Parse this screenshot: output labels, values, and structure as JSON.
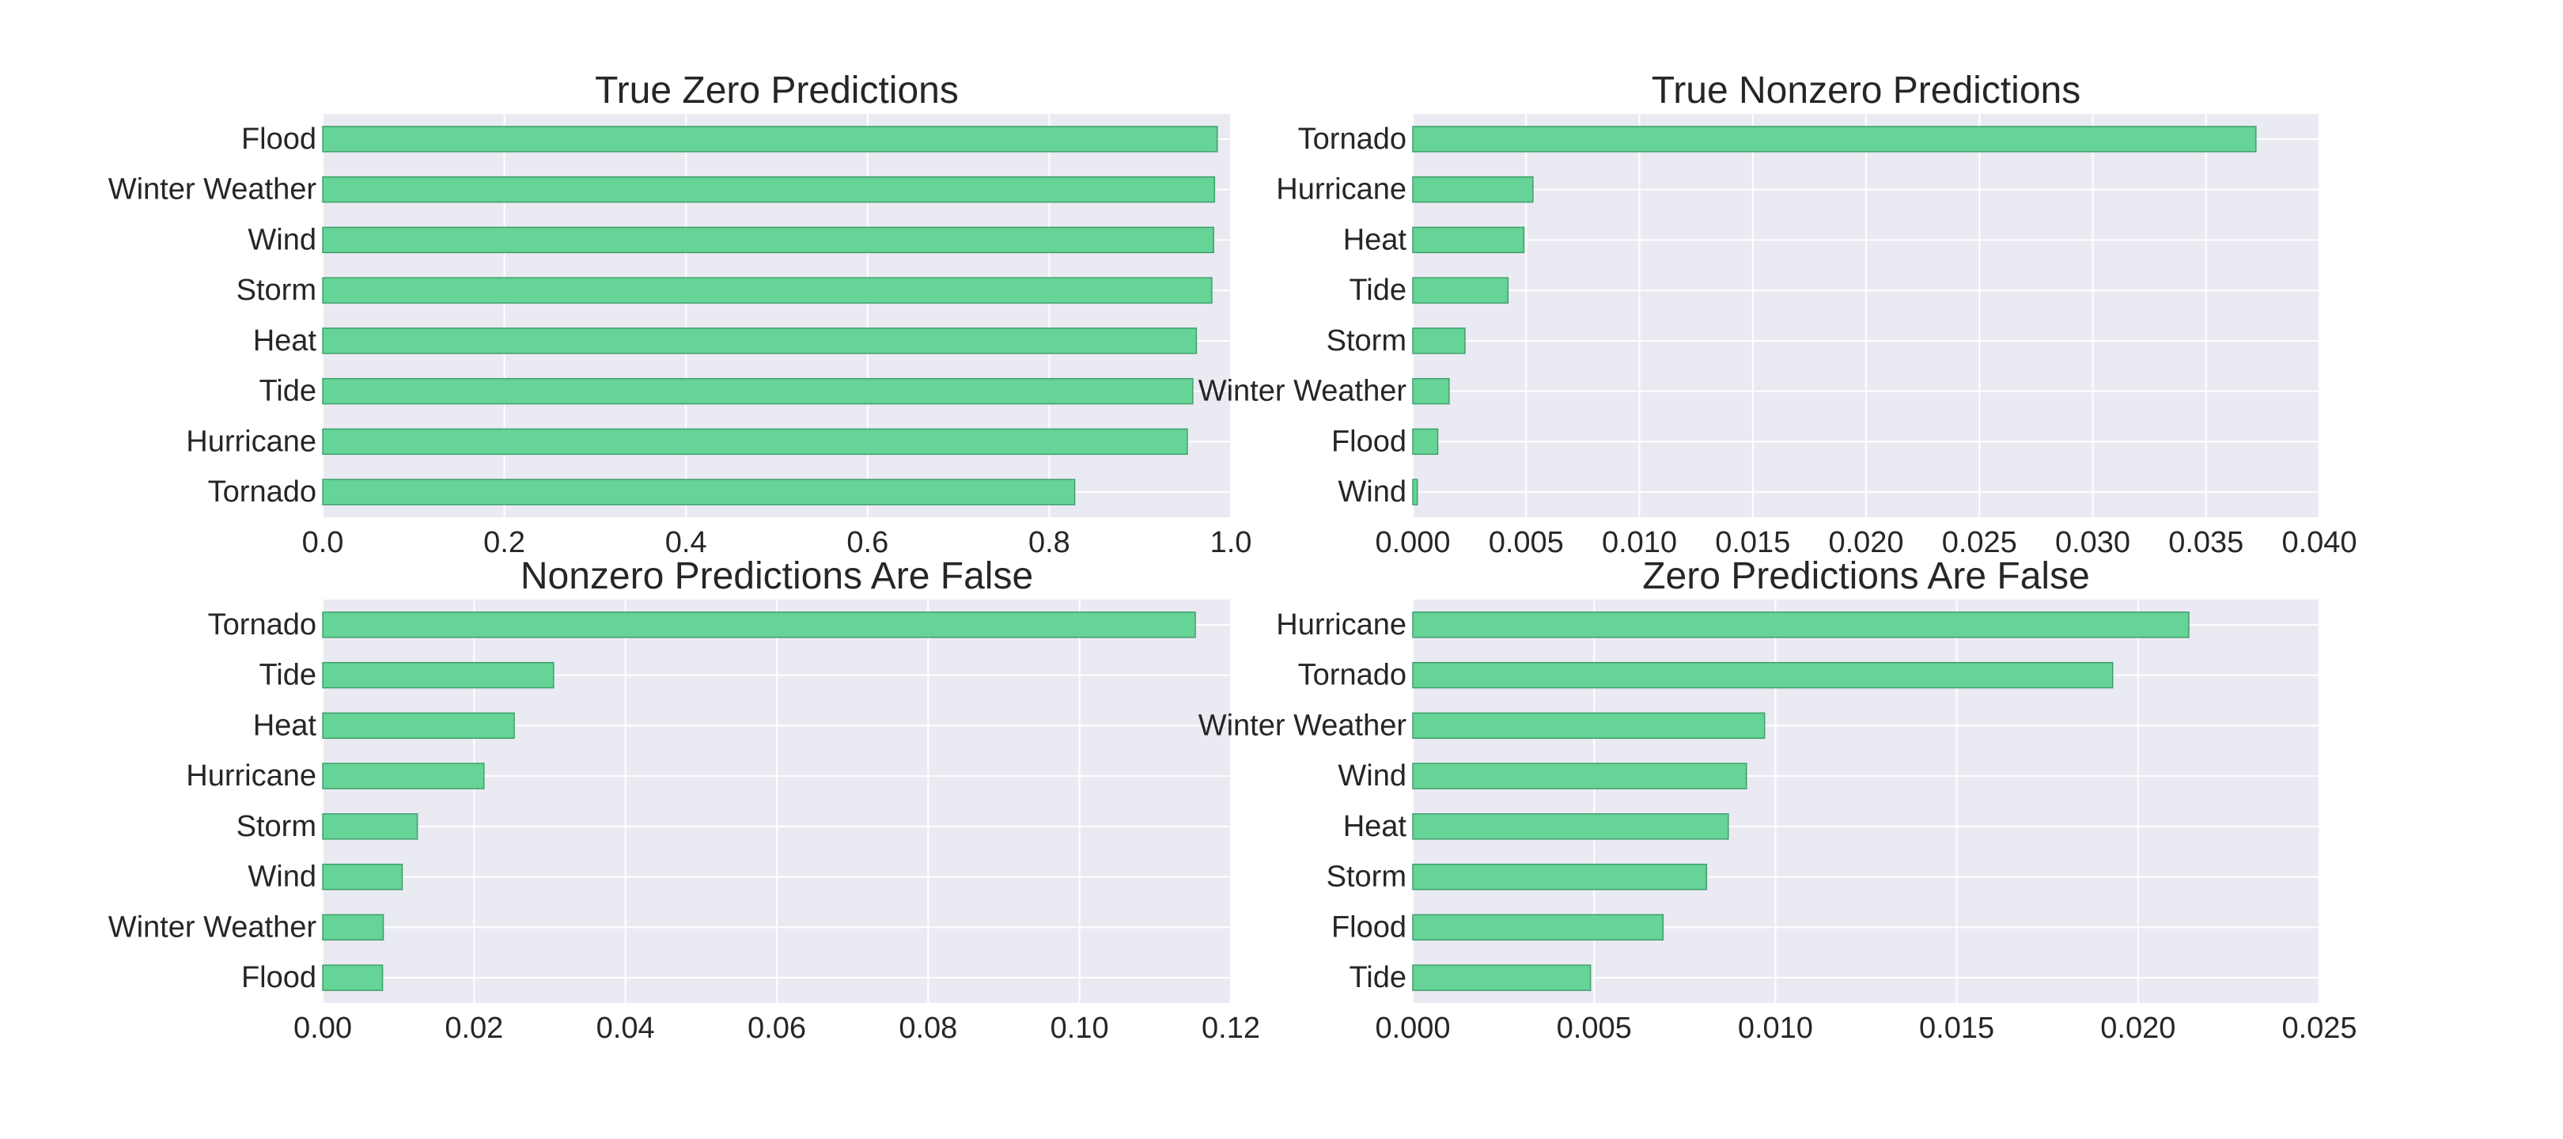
{
  "chart_data": [
    {
      "type": "bar",
      "orientation": "horizontal",
      "title": "True Zero Predictions",
      "categories": [
        "Flood",
        "Winter Weather",
        "Wind",
        "Storm",
        "Heat",
        "Tide",
        "Hurricane",
        "Tornado"
      ],
      "values": [
        0.985,
        0.982,
        0.981,
        0.979,
        0.962,
        0.958,
        0.952,
        0.828
      ],
      "xlim": [
        0,
        1.0
      ],
      "xticks": [
        0.0,
        0.2,
        0.4,
        0.6,
        0.8,
        1.0
      ],
      "xtick_labels": [
        "0.0",
        "0.2",
        "0.4",
        "0.6",
        "0.8",
        "1.0"
      ],
      "xlabel": "",
      "ylabel": "",
      "grid": true
    },
    {
      "type": "bar",
      "orientation": "horizontal",
      "title": "True Nonzero Predictions",
      "categories": [
        "Tornado",
        "Hurricane",
        "Heat",
        "Tide",
        "Storm",
        "Winter Weather",
        "Flood",
        "Wind"
      ],
      "values": [
        0.0372,
        0.0053,
        0.0049,
        0.0042,
        0.0023,
        0.0016,
        0.0011,
        0.0002
      ],
      "xlim": [
        0,
        0.04
      ],
      "xticks": [
        0.0,
        0.005,
        0.01,
        0.015,
        0.02,
        0.025,
        0.03,
        0.035,
        0.04
      ],
      "xtick_labels": [
        "0.000",
        "0.005",
        "0.010",
        "0.015",
        "0.020",
        "0.025",
        "0.030",
        "0.035",
        "0.040"
      ],
      "xlabel": "",
      "ylabel": "",
      "grid": true
    },
    {
      "type": "bar",
      "orientation": "horizontal",
      "title": "Nonzero Predictions Are False",
      "categories": [
        "Tornado",
        "Tide",
        "Heat",
        "Hurricane",
        "Storm",
        "Wind",
        "Winter Weather",
        "Flood"
      ],
      "values": [
        0.1153,
        0.0305,
        0.0253,
        0.0213,
        0.0125,
        0.0105,
        0.008,
        0.0079
      ],
      "xlim": [
        0,
        0.12
      ],
      "xticks": [
        0.0,
        0.02,
        0.04,
        0.06,
        0.08,
        0.1,
        0.12
      ],
      "xtick_labels": [
        "0.00",
        "0.02",
        "0.04",
        "0.06",
        "0.08",
        "0.10",
        "0.12"
      ],
      "xlabel": "",
      "ylabel": "",
      "grid": true
    },
    {
      "type": "bar",
      "orientation": "horizontal",
      "title": "Zero Predictions Are False",
      "categories": [
        "Hurricane",
        "Tornado",
        "Winter Weather",
        "Wind",
        "Heat",
        "Storm",
        "Flood",
        "Tide"
      ],
      "values": [
        0.0214,
        0.0193,
        0.0097,
        0.0092,
        0.0087,
        0.0081,
        0.0069,
        0.0049
      ],
      "xlim": [
        0,
        0.025
      ],
      "xticks": [
        0.0,
        0.005,
        0.01,
        0.015,
        0.02,
        0.025
      ],
      "xtick_labels": [
        "0.000",
        "0.005",
        "0.010",
        "0.015",
        "0.020",
        "0.025"
      ],
      "xlabel": "",
      "ylabel": "",
      "grid": true
    }
  ],
  "colors": {
    "bar": "#66D397",
    "bar_edge": "#3f9f6c",
    "panel_background": "#EAEAF2",
    "grid": "#ffffff",
    "text": "#262626"
  }
}
